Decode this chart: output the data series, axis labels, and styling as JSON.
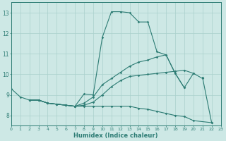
{
  "xlabel": "Humidex (Indice chaleur)",
  "xlim": [
    0,
    23
  ],
  "ylim": [
    7.5,
    13.5
  ],
  "yticks": [
    8,
    9,
    10,
    11,
    12,
    13
  ],
  "xticks": [
    0,
    1,
    2,
    3,
    4,
    5,
    6,
    7,
    8,
    9,
    10,
    11,
    12,
    13,
    14,
    15,
    16,
    17,
    18,
    19,
    20,
    21,
    22,
    23
  ],
  "bg_color": "#cde8e5",
  "line_color": "#2d7c74",
  "grid_color": "#aad0cc",
  "curves": [
    {
      "x": [
        0,
        1,
        2,
        3,
        4,
        5,
        6,
        7,
        8,
        9,
        10,
        11,
        12,
        13,
        14,
        15,
        16,
        17,
        18,
        19,
        20,
        21
      ],
      "y": [
        9.3,
        8.9,
        8.75,
        8.75,
        8.6,
        8.55,
        8.5,
        8.45,
        9.05,
        9.0,
        11.8,
        13.05,
        13.05,
        13.0,
        12.55,
        12.55,
        11.1,
        10.95,
        10.05,
        9.35,
        10.05,
        9.8
      ]
    },
    {
      "x": [
        2,
        3,
        4,
        5,
        6,
        7,
        8,
        9,
        10,
        11,
        12,
        13,
        14,
        15,
        16,
        17,
        18,
        19,
        20
      ],
      "y": [
        8.75,
        8.75,
        8.6,
        8.55,
        8.5,
        8.45,
        8.5,
        8.65,
        9.0,
        9.4,
        9.7,
        9.9,
        9.95,
        10.0,
        10.05,
        10.1,
        10.15,
        10.2,
        10.05
      ]
    },
    {
      "x": [
        2,
        3,
        4,
        5,
        6,
        7,
        8,
        9,
        10,
        11,
        12,
        13,
        14,
        15,
        16,
        17,
        18,
        19
      ],
      "y": [
        8.75,
        8.75,
        8.6,
        8.55,
        8.5,
        8.45,
        8.6,
        8.9,
        9.5,
        9.8,
        10.1,
        10.4,
        10.6,
        10.7,
        10.85,
        10.95,
        10.05,
        9.35
      ]
    },
    {
      "x": [
        2,
        3,
        4,
        5,
        6,
        7,
        8,
        9,
        10,
        11,
        12,
        13,
        14,
        15,
        16,
        17,
        18,
        19,
        20,
        22
      ],
      "y": [
        8.75,
        8.75,
        8.6,
        8.55,
        8.5,
        8.45,
        8.45,
        8.45,
        8.45,
        8.45,
        8.45,
        8.45,
        8.35,
        8.3,
        8.2,
        8.1,
        8.0,
        7.95,
        7.75,
        7.65
      ]
    },
    {
      "x": [
        21,
        22
      ],
      "y": [
        9.85,
        7.65
      ]
    }
  ]
}
